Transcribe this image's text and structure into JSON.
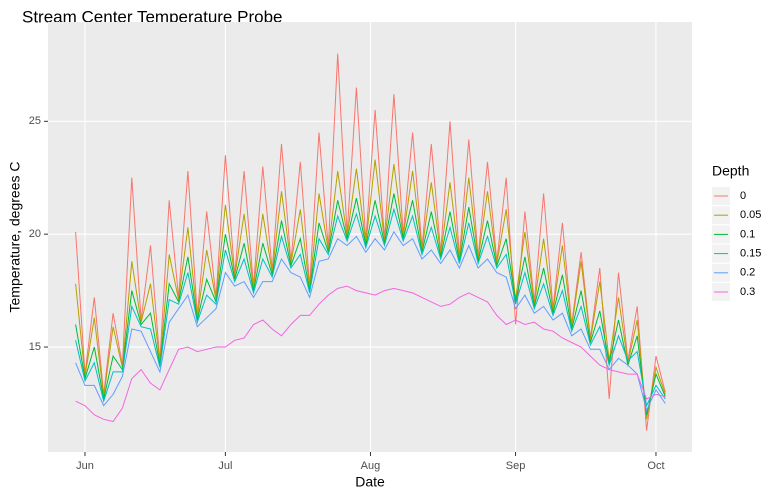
{
  "chart_data": {
    "type": "line",
    "title": "Stream Center Temperature Probe",
    "x_label": "Date",
    "y_label": "Temperature, degrees C",
    "legend_title": "Depth",
    "legend_position": "right",
    "grid": true,
    "xlim": [
      144.1,
      281.7
    ],
    "ylim": [
      10.35,
      29.4
    ],
    "xticks": [
      {
        "value": 152,
        "label": "Jun"
      },
      {
        "value": 182,
        "label": "Jul"
      },
      {
        "value": 213,
        "label": "Aug"
      },
      {
        "value": 244,
        "label": "Sep"
      },
      {
        "value": 274,
        "label": "Oct"
      }
    ],
    "yticks": [
      15,
      20,
      25
    ],
    "x": [
      150,
      152,
      154,
      156,
      158,
      160,
      162,
      164,
      166,
      168,
      170,
      172,
      174,
      176,
      178,
      180,
      182,
      184,
      186,
      188,
      190,
      192,
      194,
      196,
      198,
      200,
      202,
      204,
      206,
      208,
      210,
      212,
      214,
      216,
      218,
      220,
      222,
      224,
      226,
      228,
      230,
      232,
      234,
      236,
      238,
      240,
      242,
      244,
      246,
      248,
      250,
      252,
      254,
      256,
      258,
      260,
      262,
      264,
      266,
      268,
      270,
      272,
      274,
      276
    ],
    "series": [
      {
        "name": "0",
        "color": "#F8766D",
        "values": [
          20.1,
          13.8,
          17.2,
          12.9,
          16.5,
          14.2,
          22.5,
          16.2,
          19.5,
          14.4,
          21.5,
          17.2,
          22.8,
          16.4,
          21.0,
          17.2,
          23.5,
          18.2,
          22.8,
          17.7,
          23.0,
          18.4,
          24.0,
          18.8,
          23.2,
          17.7,
          24.5,
          19.4,
          28.0,
          20.0,
          26.5,
          19.7,
          25.5,
          19.8,
          26.2,
          20.0,
          24.5,
          19.4,
          24.0,
          19.2,
          25.0,
          19.0,
          24.2,
          19.0,
          23.2,
          18.8,
          22.5,
          16.0,
          21.0,
          17.0,
          21.8,
          16.7,
          20.5,
          16.0,
          19.2,
          15.4,
          18.5,
          12.7,
          18.3,
          14.4,
          16.8,
          11.3,
          14.6,
          13.0
        ]
      },
      {
        "name": "0.05",
        "color": "#B79F00",
        "values": [
          17.8,
          13.7,
          16.3,
          12.8,
          15.9,
          14.1,
          18.8,
          16.1,
          17.8,
          14.3,
          19.1,
          17.1,
          20.3,
          16.3,
          19.3,
          17.1,
          21.3,
          18.1,
          20.9,
          17.6,
          20.9,
          18.3,
          21.9,
          18.7,
          21.1,
          17.6,
          21.8,
          19.3,
          22.8,
          19.9,
          22.9,
          19.6,
          23.3,
          19.7,
          23.1,
          19.9,
          22.8,
          19.3,
          22.3,
          19.1,
          22.3,
          18.9,
          22.5,
          18.9,
          21.9,
          18.7,
          21.1,
          17.1,
          20.1,
          16.9,
          19.8,
          16.6,
          19.5,
          15.9,
          18.8,
          15.3,
          17.9,
          14.4,
          17.2,
          14.3,
          16.2,
          11.8,
          14.1,
          12.9
        ]
      },
      {
        "name": "0.1",
        "color": "#00BA38",
        "values": [
          16.0,
          13.6,
          15.0,
          12.7,
          14.6,
          14.0,
          17.5,
          16.0,
          16.5,
          14.2,
          17.8,
          17.0,
          19.0,
          16.2,
          18.0,
          17.0,
          20.0,
          18.0,
          19.6,
          17.5,
          19.6,
          18.2,
          20.6,
          18.6,
          19.8,
          17.5,
          20.5,
          19.2,
          21.5,
          19.8,
          21.6,
          19.5,
          21.5,
          19.6,
          21.8,
          19.8,
          21.5,
          19.2,
          21.0,
          19.0,
          21.0,
          18.8,
          21.2,
          18.8,
          20.6,
          18.6,
          19.8,
          17.0,
          19.0,
          16.8,
          18.5,
          16.5,
          18.2,
          15.8,
          17.5,
          15.2,
          16.6,
          14.3,
          16.2,
          14.2,
          15.5,
          12.0,
          13.8,
          12.8
        ]
      },
      {
        "name": "0.15",
        "color": "#00BFC4",
        "values": [
          15.3,
          13.5,
          14.3,
          12.6,
          13.9,
          13.9,
          16.8,
          15.9,
          15.8,
          14.1,
          17.1,
          16.9,
          18.3,
          16.1,
          17.3,
          16.9,
          19.3,
          17.9,
          18.9,
          17.4,
          18.9,
          18.1,
          19.9,
          18.5,
          19.1,
          17.4,
          19.8,
          19.1,
          20.8,
          19.7,
          20.9,
          19.4,
          20.8,
          19.5,
          21.1,
          19.7,
          20.8,
          19.1,
          20.3,
          18.9,
          20.3,
          18.7,
          20.5,
          18.7,
          19.9,
          18.5,
          19.1,
          16.9,
          18.3,
          16.7,
          17.8,
          16.4,
          17.5,
          15.7,
          16.8,
          15.1,
          15.9,
          14.2,
          15.5,
          14.4,
          14.8,
          12.4,
          13.3,
          12.7
        ]
      },
      {
        "name": "0.2",
        "color": "#619CFF",
        "values": [
          14.3,
          13.3,
          13.3,
          12.4,
          12.9,
          13.7,
          15.8,
          15.7,
          14.8,
          13.9,
          16.1,
          16.7,
          17.3,
          15.9,
          16.3,
          16.7,
          18.3,
          17.7,
          17.9,
          17.2,
          17.9,
          17.9,
          18.9,
          18.3,
          18.1,
          17.2,
          18.8,
          18.9,
          19.8,
          19.5,
          19.9,
          19.2,
          19.8,
          19.3,
          20.1,
          19.5,
          19.8,
          18.9,
          19.3,
          18.7,
          19.3,
          18.5,
          19.5,
          18.5,
          18.9,
          18.3,
          18.1,
          16.7,
          17.3,
          16.5,
          16.8,
          16.2,
          16.5,
          15.5,
          15.8,
          14.9,
          14.9,
          14.0,
          14.5,
          14.2,
          13.8,
          12.2,
          13.1,
          12.5
        ]
      },
      {
        "name": "0.3",
        "color": "#F564E3",
        "values": [
          12.6,
          12.4,
          12.0,
          11.8,
          11.7,
          12.3,
          13.6,
          14.0,
          13.4,
          13.1,
          14.0,
          14.9,
          15.0,
          14.8,
          14.9,
          15.0,
          15.0,
          15.3,
          15.4,
          16.0,
          16.2,
          15.8,
          15.5,
          16.0,
          16.4,
          16.4,
          16.9,
          17.3,
          17.6,
          17.7,
          17.5,
          17.4,
          17.3,
          17.5,
          17.6,
          17.5,
          17.4,
          17.2,
          17.0,
          16.8,
          16.9,
          17.2,
          17.4,
          17.2,
          17.0,
          16.4,
          16.0,
          16.2,
          16.0,
          16.1,
          15.8,
          15.7,
          15.4,
          15.2,
          15.0,
          14.6,
          14.2,
          14.0,
          13.9,
          13.8,
          13.8,
          12.7,
          12.9,
          12.8
        ]
      }
    ]
  }
}
